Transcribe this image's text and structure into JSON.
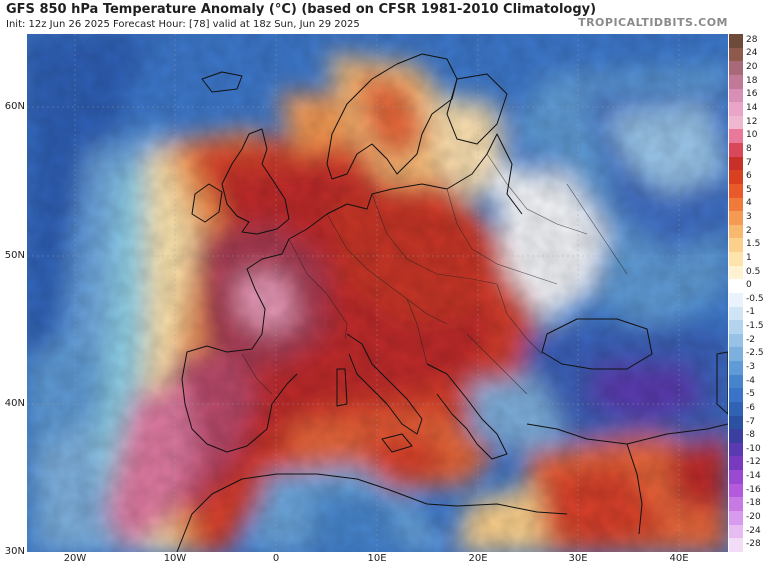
{
  "header": {
    "title": "GFS 850 hPa Temperature Anomaly (°C) (based on CFSR 1981-2010 Climatology)",
    "subtitle": "Init: 12z Jun 26 2025   Forecast Hour: [78]   valid at 18z Sun, Jun 29 2025",
    "brand": "TROPICALTIDBITS.COM"
  },
  "axes": {
    "lat_labels": [
      "60N",
      "50N",
      "40N",
      "30N"
    ],
    "lon_labels": [
      "20W",
      "10W",
      "0",
      "10E",
      "20E",
      "30E",
      "40E"
    ]
  },
  "colorbar": {
    "levels": [
      "28",
      "24",
      "20",
      "18",
      "16",
      "14",
      "12",
      "10",
      "8",
      "7",
      "6",
      "5",
      "4",
      "3",
      "2",
      "1.5",
      "1",
      "0.5",
      "0",
      "-0.5",
      "-1",
      "-1.5",
      "-2",
      "-2.5",
      "-3",
      "-4",
      "-5",
      "-6",
      "-7",
      "-8",
      "-10",
      "-12",
      "-14",
      "-16",
      "-18",
      "-20",
      "-24",
      "-28"
    ],
    "colors": [
      "#6e4a3a",
      "#8f5a4e",
      "#a86a78",
      "#c07a98",
      "#d88fb5",
      "#e8a5c8",
      "#f0b8d0",
      "#e8799a",
      "#d8475a",
      "#c8302a",
      "#d84020",
      "#e85a2a",
      "#f07a3a",
      "#f59a52",
      "#f8b870",
      "#fbd08c",
      "#fde4ac",
      "#fef2d0",
      "#ffffff",
      "#eaf3fb",
      "#cfe4f5",
      "#b3d3ee",
      "#98c1e6",
      "#7eb0de",
      "#5f9bd6",
      "#4685cc",
      "#3a73c8",
      "#3262b4",
      "#2b52a0",
      "#3a3fa0",
      "#5a3ab0",
      "#7a3ac0",
      "#9a4ad0",
      "#b45adc",
      "#c87ae4",
      "#d89aec",
      "#e6bcf2",
      "#f2dcf8"
    ]
  },
  "legend_icon": "map-legend-colorbar"
}
